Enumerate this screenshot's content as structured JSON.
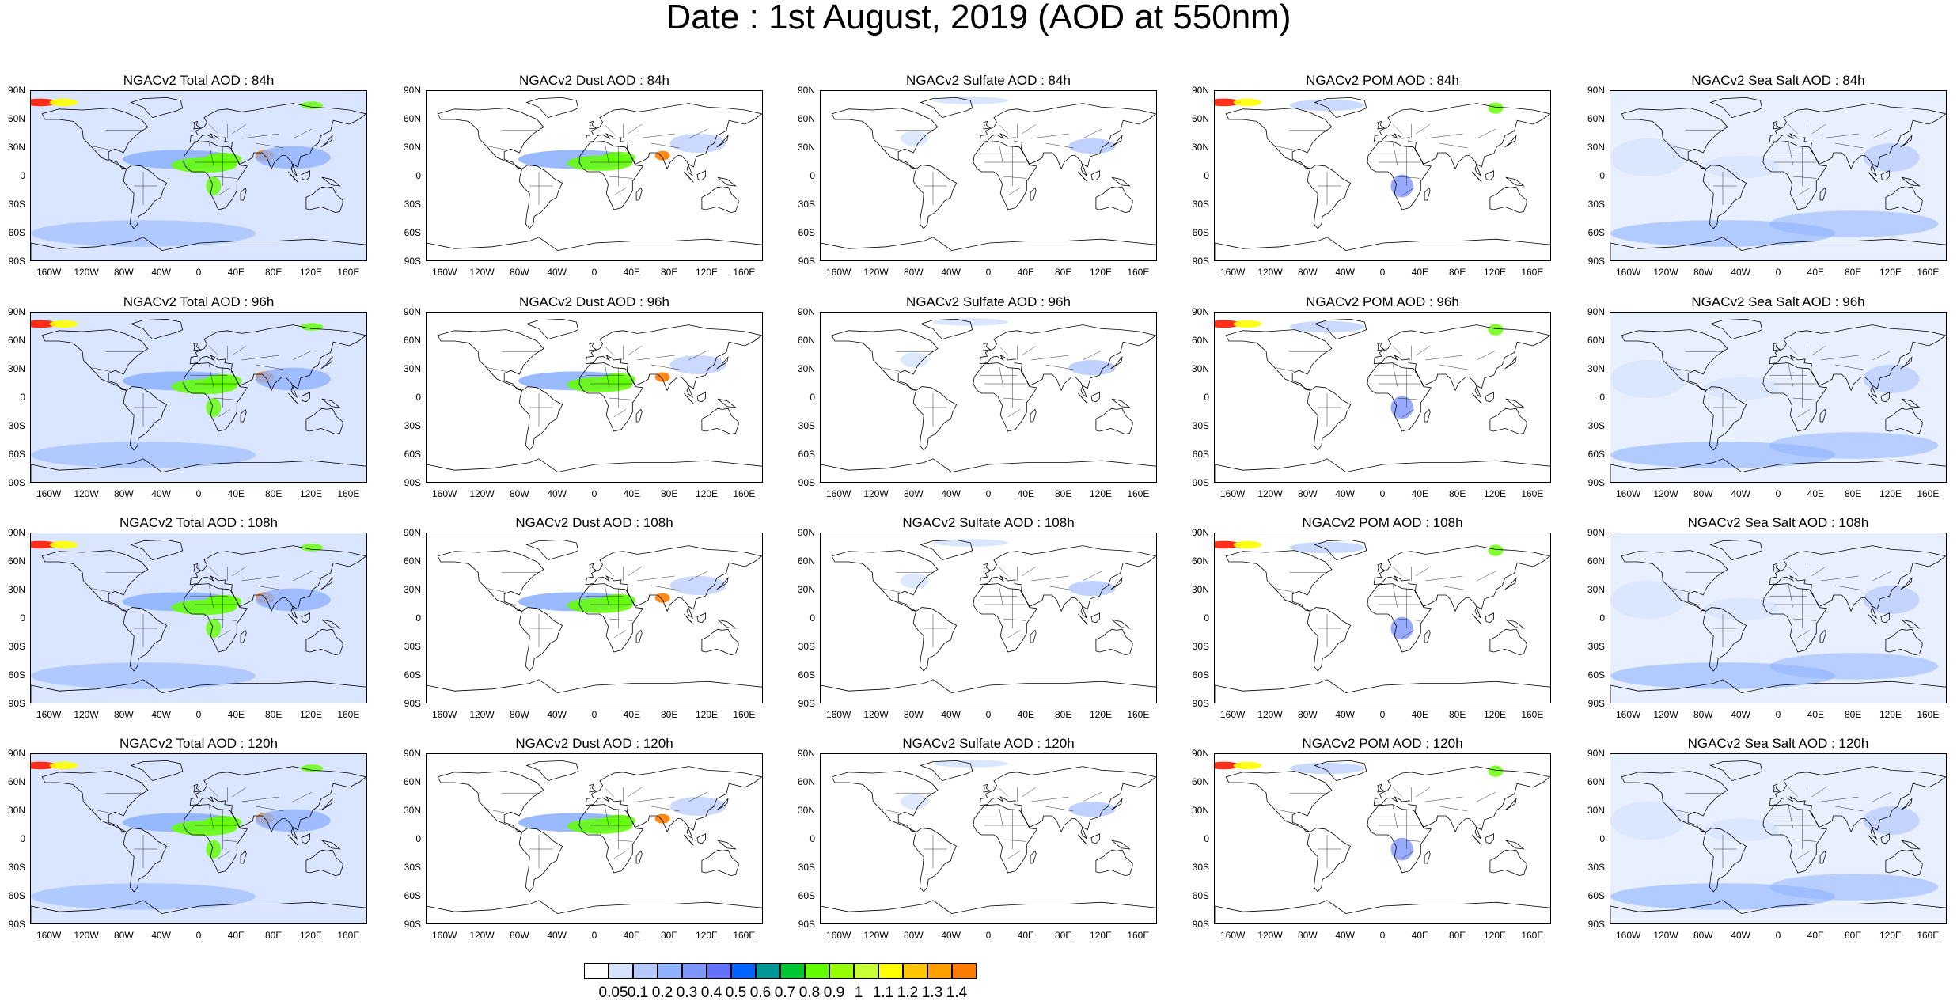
{
  "title": "Date : 1st August, 2019 (AOD at 550nm)",
  "lat_ticks": [
    "90N",
    "60N",
    "30N",
    "0",
    "30S",
    "60S",
    "90S"
  ],
  "lon_ticks": [
    "160W",
    "120W",
    "80W",
    "40W",
    "0",
    "40E",
    "80E",
    "120E",
    "160E"
  ],
  "panels": [
    [
      "NGACv2 Total AOD : 84h",
      "NGACv2 Dust AOD : 84h",
      "NGACv2 Sulfate AOD : 84h",
      "NGACv2 POM AOD : 84h",
      "NGACv2 Sea Salt AOD : 84h"
    ],
    [
      "NGACv2 Total AOD : 96h",
      "NGACv2 Dust AOD : 96h",
      "NGACv2 Sulfate AOD : 96h",
      "NGACv2 POM AOD : 96h",
      "NGACv2 Sea Salt AOD : 96h"
    ],
    [
      "NGACv2 Total AOD : 108h",
      "NGACv2 Dust AOD : 108h",
      "NGACv2 Sulfate AOD : 108h",
      "NGACv2 POM AOD : 108h",
      "NGACv2 Sea Salt AOD : 108h"
    ],
    [
      "NGACv2 Total AOD : 120h",
      "NGACv2 Dust AOD : 120h",
      "NGACv2 Sulfate AOD : 120h",
      "NGACv2 POM AOD : 120h",
      "NGACv2 Sea Salt  AOD : 120h"
    ]
  ],
  "colorbar": {
    "labels": [
      "0.05",
      "0.1",
      "0.2",
      "0.3",
      "0.4",
      "0.5",
      "0.6",
      "0.7",
      "0.8",
      "0.9",
      "1",
      "1.1",
      "1.2",
      "1.3",
      "1.4"
    ],
    "colors": [
      "#ffffff",
      "#d6e2ff",
      "#b5c9ff",
      "#8eb2ff",
      "#7f96ff",
      "#6370f8",
      "#0063ff",
      "#009696",
      "#00c633",
      "#63ff00",
      "#96ff00",
      "#c6ff33",
      "#ffff00",
      "#ffc600",
      "#ffa000",
      "#ff7c00",
      "#ff1900"
    ]
  },
  "colors": {
    "coast": "#000000",
    "aod_low": "#d6e2ff",
    "aod_mid": "#8eb2ff",
    "dust_core": "#63ff00",
    "hotspot": "#ff7c00"
  }
}
